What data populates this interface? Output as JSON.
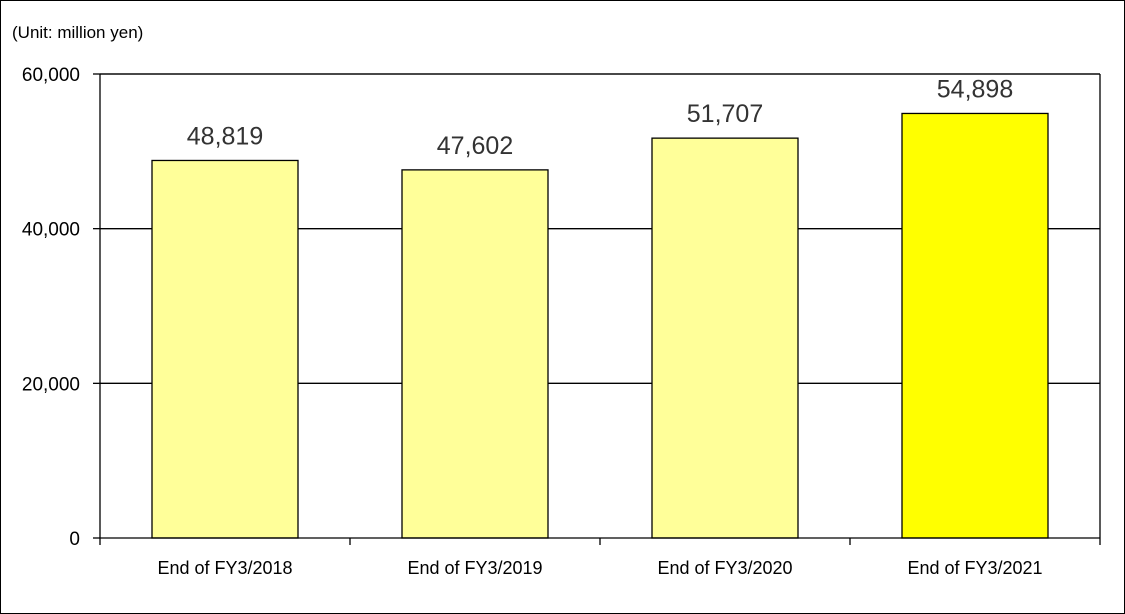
{
  "chart_data": {
    "type": "bar",
    "unit_label": "(Unit: million yen)",
    "title": "",
    "xlabel": "",
    "ylabel": "",
    "categories": [
      "End of FY3/2018",
      "End of FY3/2019",
      "End of FY3/2020",
      "End of FY3/2021"
    ],
    "values": [
      48819,
      47602,
      51707,
      54898
    ],
    "value_labels": [
      "48,819",
      "47,602",
      "51,707",
      "54,898"
    ],
    "ylim": [
      0,
      60000
    ],
    "yticks": [
      0,
      20000,
      40000,
      60000
    ],
    "ytick_labels": [
      "0",
      "20,000",
      "40,000",
      "60,000"
    ],
    "grid": true,
    "legend": "none",
    "colors": {
      "bar_default": "#ffff99",
      "bar_highlight": "#ffff00",
      "highlight_index": 3,
      "bar_stroke": "#000000",
      "gridline": "#000000"
    }
  }
}
